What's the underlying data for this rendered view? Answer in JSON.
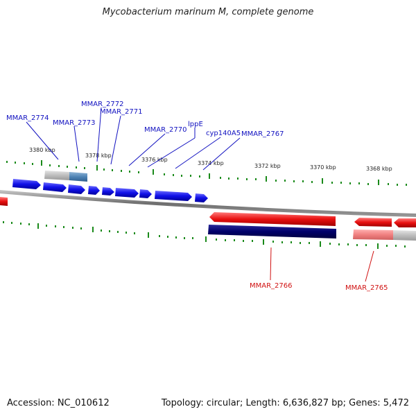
{
  "title": "Mycobacterium marinum M, complete genome",
  "accession": "Accession: NC_010612",
  "summary": "Topology: circular; Length: 6,636,827 bp; Genes: 5,472",
  "colors": {
    "forward_gene": "#1010e8",
    "reverse_gene": "#e01010",
    "reverse_cds": "#000070",
    "tick": "#1a8a1a",
    "backbone": "#7a7a7a",
    "forward_label": "#1010c0",
    "reverse_label": "#d01010"
  },
  "scale_ticks": [
    "3380 kbp",
    "3378 kbp",
    "3376 kbp",
    "3374 kbp",
    "3372 kbp",
    "3370 kbp",
    "3368 kbp"
  ],
  "forward_labels": [
    "MMAR_2774",
    "MMAR_2773",
    "MMAR_2772",
    "MMAR_2771",
    "MMAR_2770",
    "lppE",
    "cyp140A5",
    "MMAR_2767"
  ],
  "reverse_labels": [
    "MMAR_2766",
    "MMAR_2765"
  ]
}
